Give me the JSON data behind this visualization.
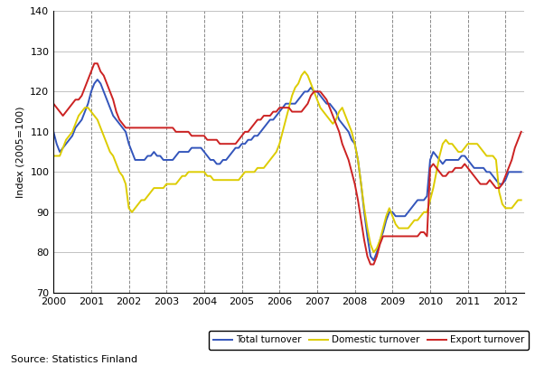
{
  "title": "",
  "ylabel": "Index (2005=100)",
  "source_text": "Source: Statistics Finland",
  "ylim": [
    70,
    140
  ],
  "yticks": [
    70,
    80,
    90,
    100,
    110,
    120,
    130,
    140
  ],
  "start_year": 2000,
  "start_month": 1,
  "end_year": 2012,
  "end_month": 6,
  "colors": {
    "total": "#3355bb",
    "domestic": "#ddcc00",
    "export": "#cc2222"
  },
  "legend_labels": [
    "Total turnover",
    "Domestic turnover",
    "Export turnover"
  ],
  "xtick_years": [
    2000,
    2001,
    2002,
    2003,
    2004,
    2005,
    2006,
    2007,
    2008,
    2009,
    2010,
    2011,
    2012
  ],
  "total_turnover": [
    110,
    107,
    105,
    106,
    107,
    108,
    109,
    111,
    112,
    113,
    115,
    117,
    120,
    122,
    123,
    122,
    120,
    118,
    116,
    114,
    113,
    112,
    111,
    110,
    107,
    105,
    103,
    103,
    103,
    103,
    104,
    104,
    105,
    104,
    104,
    103,
    103,
    103,
    103,
    104,
    105,
    105,
    105,
    105,
    106,
    106,
    106,
    106,
    105,
    104,
    103,
    103,
    102,
    102,
    103,
    103,
    104,
    105,
    106,
    106,
    107,
    107,
    108,
    108,
    109,
    109,
    110,
    111,
    112,
    113,
    113,
    114,
    115,
    116,
    117,
    117,
    117,
    117,
    118,
    119,
    120,
    120,
    121,
    120,
    120,
    119,
    118,
    117,
    117,
    116,
    115,
    113,
    112,
    111,
    110,
    108,
    107,
    103,
    97,
    90,
    84,
    79,
    78,
    80,
    83,
    85,
    88,
    90,
    90,
    89,
    89,
    89,
    89,
    90,
    91,
    92,
    93,
    93,
    93,
    94,
    103,
    105,
    104,
    103,
    102,
    103,
    103,
    103,
    103,
    103,
    104,
    104,
    103,
    102,
    101,
    101,
    101,
    101,
    100,
    100,
    99,
    98,
    97,
    97,
    98,
    100,
    100,
    100,
    100,
    100
  ],
  "domestic_turnover": [
    104,
    104,
    104,
    106,
    108,
    109,
    110,
    112,
    114,
    115,
    116,
    116,
    115,
    114,
    113,
    111,
    109,
    107,
    105,
    104,
    102,
    100,
    99,
    97,
    91,
    90,
    91,
    92,
    93,
    93,
    94,
    95,
    96,
    96,
    96,
    96,
    97,
    97,
    97,
    97,
    98,
    99,
    99,
    100,
    100,
    100,
    100,
    100,
    100,
    99,
    99,
    98,
    98,
    98,
    98,
    98,
    98,
    98,
    98,
    98,
    99,
    100,
    100,
    100,
    100,
    101,
    101,
    101,
    102,
    103,
    104,
    105,
    107,
    110,
    113,
    116,
    119,
    121,
    122,
    124,
    125,
    124,
    122,
    120,
    118,
    116,
    115,
    114,
    113,
    112,
    113,
    115,
    116,
    114,
    112,
    110,
    107,
    103,
    97,
    91,
    86,
    82,
    80,
    81,
    83,
    86,
    89,
    91,
    89,
    87,
    86,
    86,
    86,
    86,
    87,
    88,
    88,
    89,
    90,
    90,
    93,
    96,
    100,
    104,
    107,
    108,
    107,
    107,
    106,
    105,
    105,
    106,
    107,
    107,
    107,
    107,
    106,
    105,
    104,
    104,
    104,
    103,
    95,
    92,
    91,
    91,
    91,
    92,
    93,
    93
  ],
  "export_turnover": [
    117,
    116,
    115,
    114,
    115,
    116,
    117,
    118,
    118,
    119,
    121,
    123,
    125,
    127,
    127,
    125,
    124,
    122,
    120,
    118,
    115,
    113,
    112,
    111,
    111,
    111,
    111,
    111,
    111,
    111,
    111,
    111,
    111,
    111,
    111,
    111,
    111,
    111,
    111,
    110,
    110,
    110,
    110,
    110,
    109,
    109,
    109,
    109,
    109,
    108,
    108,
    108,
    108,
    107,
    107,
    107,
    107,
    107,
    107,
    108,
    109,
    110,
    110,
    111,
    112,
    113,
    113,
    114,
    114,
    114,
    115,
    115,
    116,
    116,
    116,
    116,
    115,
    115,
    115,
    115,
    116,
    117,
    119,
    120,
    120,
    120,
    119,
    118,
    116,
    114,
    112,
    110,
    107,
    105,
    103,
    100,
    97,
    93,
    88,
    83,
    79,
    77,
    77,
    79,
    82,
    84,
    84,
    84,
    84,
    84,
    84,
    84,
    84,
    84,
    84,
    84,
    84,
    85,
    85,
    84,
    101,
    102,
    101,
    100,
    99,
    99,
    100,
    100,
    101,
    101,
    101,
    102,
    101,
    100,
    99,
    98,
    97,
    97,
    97,
    98,
    97,
    96,
    96,
    97,
    99,
    101,
    103,
    106,
    108,
    110
  ]
}
